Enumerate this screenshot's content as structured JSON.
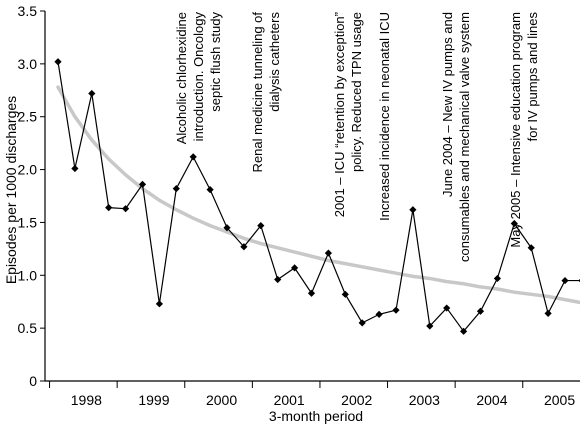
{
  "chart_data": {
    "type": "line",
    "title": "",
    "xlabel": "3-month period",
    "ylabel": "Episodes per 1000 discharges",
    "ylim": [
      0,
      3.5
    ],
    "yticks": [
      "0",
      "0.5",
      "1.0",
      "1.5",
      "2.0",
      "2.5",
      "3.0",
      "3.5"
    ],
    "year_labels": [
      "1998",
      "1999",
      "2000",
      "2001",
      "2002",
      "2003",
      "2004",
      "2005"
    ],
    "grid": false,
    "legend": "none",
    "series": [
      {
        "style": "black line with diamond markers",
        "color": "#000000",
        "values": [
          3.02,
          2.01,
          2.72,
          1.64,
          1.63,
          1.86,
          0.73,
          1.82,
          2.12,
          1.81,
          1.45,
          1.27,
          1.47,
          0.96,
          1.07,
          0.83,
          1.21,
          0.82,
          0.55,
          0.63,
          0.67,
          1.62,
          0.52,
          0.69,
          0.47,
          0.66,
          0.97,
          1.49,
          1.26,
          0.64,
          0.95,
          0.95
        ]
      },
      {
        "style": "grey trend line",
        "color": "#c8c8c8",
        "values": [
          2.78,
          2.5,
          2.28,
          2.1,
          1.95,
          1.82,
          1.71,
          1.62,
          1.54,
          1.47,
          1.41,
          1.35,
          1.3,
          1.26,
          1.22,
          1.18,
          1.14,
          1.11,
          1.08,
          1.05,
          1.02,
          0.99,
          0.97,
          0.94,
          0.92,
          0.89,
          0.87,
          0.84,
          0.82,
          0.8,
          0.77,
          0.74
        ]
      }
    ],
    "annotations": [
      {
        "lines": [
          "Alcoholic chlorhexidine",
          "introduction. Oncology",
          "septic flush study"
        ]
      },
      {
        "lines": [
          "Renal medicine tunneling of",
          "dialysis catheters"
        ]
      },
      {
        "lines": [
          "2001 – ICU “retention by exception”",
          "policy. Reduced TPN usage"
        ]
      },
      {
        "lines": [
          "Increased incidence in neonatal ICU"
        ]
      },
      {
        "lines": [
          "June 2004 – New IV pumps and",
          "consumables and mechanical valve system"
        ]
      },
      {
        "lines": [
          "May 2005 – Intensive education program",
          "for IV pumps and lines"
        ]
      }
    ]
  }
}
